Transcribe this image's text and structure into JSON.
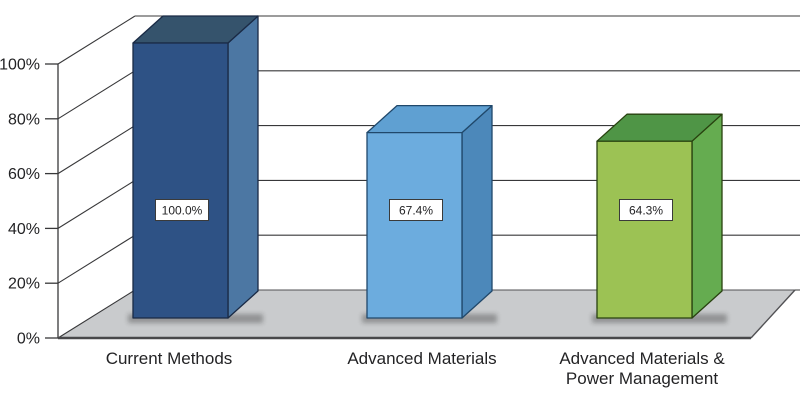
{
  "chart_data": {
    "type": "bar",
    "projection": "3d",
    "title": "",
    "xlabel": "",
    "ylabel": "",
    "categories": [
      [
        "Current Methods"
      ],
      [
        "Advanced Materials"
      ],
      [
        "Advanced Materials &",
        "Power Management"
      ]
    ],
    "category_ids": [
      "current-methods",
      "advanced-materials",
      "advanced-materials-power-management"
    ],
    "values": [
      100.0,
      67.4,
      64.3
    ],
    "data_labels": [
      "100.0%",
      "67.4%",
      "64.3%"
    ],
    "y_axis": {
      "range": [
        0,
        100
      ],
      "ticks": [
        0,
        20,
        40,
        60,
        80,
        100
      ],
      "tick_labels": [
        "0%",
        "20%",
        "40%",
        "60%",
        "80%",
        "100%"
      ]
    },
    "grid": true,
    "legend": false,
    "colors": {
      "background": "#FFFFFF",
      "bars": [
        {
          "front": "#2E5285",
          "side": "#4C77A3",
          "top": "#35536C",
          "stroke": "#1A2A45"
        },
        {
          "front": "#6CACDE",
          "side": "#4C88BA",
          "top": "#5FA0D2",
          "stroke": "#20486B"
        },
        {
          "front": "#9CC254",
          "side": "#65AC50",
          "top": "#4F9546",
          "stroke": "#28420F"
        }
      ],
      "floor": "#C9CBCD",
      "floor_front_edge": "#48484A",
      "floor_other_edge": "#515154",
      "grid_line": "#38383A",
      "axis_line": "#38383A",
      "text": "#232325",
      "value_box_bg": "#FFFFFF",
      "value_box_border": "#3A3A3A"
    }
  }
}
